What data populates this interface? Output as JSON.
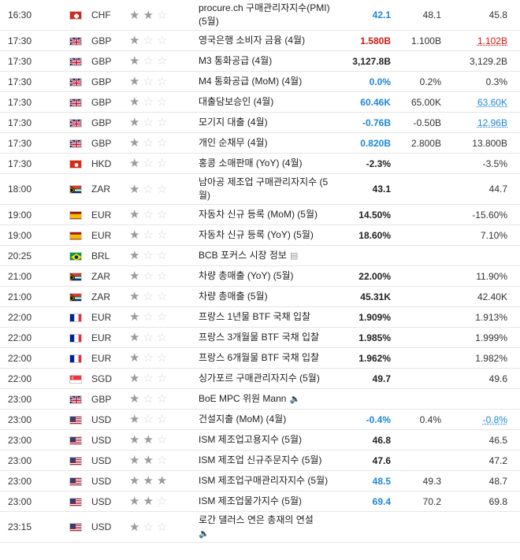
{
  "rows": [
    {
      "time": "16:30",
      "flag": "ch",
      "cur": "CHF",
      "stars": 2,
      "event": "procure.ch 구매관리자지수(PMI) (5월)",
      "actual": "42.1",
      "actual_class": "up",
      "forecast": "48.1",
      "prev": "45.8",
      "prev_class": "",
      "tall": true,
      "icon": ""
    },
    {
      "time": "17:30",
      "flag": "gb",
      "cur": "GBP",
      "stars": 1,
      "event": "영국은행 소비자 금융 (4월)",
      "actual": "1.580B",
      "actual_class": "down",
      "forecast": "1.100B",
      "prev": "1.102B",
      "prev_class": "down link",
      "tall": false,
      "icon": ""
    },
    {
      "time": "17:30",
      "flag": "gb",
      "cur": "GBP",
      "stars": 1,
      "event": "M3 통화공급 (4월)",
      "actual": "3,127.8B",
      "actual_class": "",
      "forecast": "",
      "prev": "3,129.2B",
      "prev_class": "",
      "tall": false,
      "icon": ""
    },
    {
      "time": "17:30",
      "flag": "gb",
      "cur": "GBP",
      "stars": 1,
      "event": "M4 통화공급 (MoM) (4월)",
      "actual": "0.0%",
      "actual_class": "up",
      "forecast": "0.2%",
      "prev": "0.3%",
      "prev_class": "",
      "tall": false,
      "icon": ""
    },
    {
      "time": "17:30",
      "flag": "gb",
      "cur": "GBP",
      "stars": 1,
      "event": "대출담보승인 (4월)",
      "actual": "60.46K",
      "actual_class": "up",
      "forecast": "65.00K",
      "prev": "63.60K",
      "prev_class": "up link",
      "tall": false,
      "icon": ""
    },
    {
      "time": "17:30",
      "flag": "gb",
      "cur": "GBP",
      "stars": 1,
      "event": "모기지 대출 (4월)",
      "actual": "-0.76B",
      "actual_class": "up",
      "forecast": "-0.50B",
      "prev": "12.96B",
      "prev_class": "up link",
      "tall": false,
      "icon": ""
    },
    {
      "time": "17:30",
      "flag": "gb",
      "cur": "GBP",
      "stars": 1,
      "event": "개인 순채무 (4월)",
      "actual": "0.820B",
      "actual_class": "up",
      "forecast": "2.800B",
      "prev": "13.800B",
      "prev_class": "",
      "tall": false,
      "icon": ""
    },
    {
      "time": "17:30",
      "flag": "hk",
      "cur": "HKD",
      "stars": 1,
      "event": "홍콩 소매판매 (YoY) (4월)",
      "actual": "-2.3%",
      "actual_class": "",
      "forecast": "",
      "prev": "-3.5%",
      "prev_class": "",
      "tall": false,
      "icon": ""
    },
    {
      "time": "18:00",
      "flag": "za",
      "cur": "ZAR",
      "stars": 1,
      "event": "남아공 제조업 구매관리자지수 (5월)",
      "actual": "43.1",
      "actual_class": "",
      "forecast": "",
      "prev": "44.7",
      "prev_class": "",
      "tall": true,
      "icon": ""
    },
    {
      "time": "19:00",
      "flag": "es",
      "cur": "EUR",
      "stars": 1,
      "event": "자동차 신규 등록 (MoM) (5월)",
      "actual": "14.50%",
      "actual_class": "",
      "forecast": "",
      "prev": "-15.60%",
      "prev_class": "",
      "tall": false,
      "icon": ""
    },
    {
      "time": "19:00",
      "flag": "es",
      "cur": "EUR",
      "stars": 1,
      "event": "자동차 신규 등록 (YoY) (5월)",
      "actual": "18.60%",
      "actual_class": "",
      "forecast": "",
      "prev": "7.10%",
      "prev_class": "",
      "tall": false,
      "icon": ""
    },
    {
      "time": "20:25",
      "flag": "br",
      "cur": "BRL",
      "stars": 1,
      "event": "BCB 포커스 시장 정보",
      "actual": "",
      "actual_class": "",
      "forecast": "",
      "prev": "",
      "prev_class": "",
      "tall": false,
      "icon": "report"
    },
    {
      "time": "21:00",
      "flag": "za",
      "cur": "ZAR",
      "stars": 1,
      "event": "차량 총매출 (YoY) (5월)",
      "actual": "22.00%",
      "actual_class": "",
      "forecast": "",
      "prev": "11.90%",
      "prev_class": "",
      "tall": false,
      "icon": ""
    },
    {
      "time": "21:00",
      "flag": "za",
      "cur": "ZAR",
      "stars": 1,
      "event": "차량 총매출 (5월)",
      "actual": "45.31K",
      "actual_class": "",
      "forecast": "",
      "prev": "42.40K",
      "prev_class": "",
      "tall": false,
      "icon": ""
    },
    {
      "time": "22:00",
      "flag": "fr",
      "cur": "EUR",
      "stars": 1,
      "event": "프랑스 1년물 BTF 국채 입찰",
      "actual": "1.909%",
      "actual_class": "",
      "forecast": "",
      "prev": "1.913%",
      "prev_class": "",
      "tall": false,
      "icon": ""
    },
    {
      "time": "22:00",
      "flag": "fr",
      "cur": "EUR",
      "stars": 1,
      "event": "프랑스 3개월물 BTF 국채 입찰",
      "actual": "1.985%",
      "actual_class": "",
      "forecast": "",
      "prev": "1.999%",
      "prev_class": "",
      "tall": false,
      "icon": ""
    },
    {
      "time": "22:00",
      "flag": "fr",
      "cur": "EUR",
      "stars": 1,
      "event": "프랑스 6개월물 BTF 국채 입찰",
      "actual": "1.962%",
      "actual_class": "",
      "forecast": "",
      "prev": "1.982%",
      "prev_class": "",
      "tall": false,
      "icon": ""
    },
    {
      "time": "22:00",
      "flag": "sg",
      "cur": "SGD",
      "stars": 1,
      "event": "싱가포르 구매관리자지수 (5월)",
      "actual": "49.7",
      "actual_class": "",
      "forecast": "",
      "prev": "49.6",
      "prev_class": "",
      "tall": false,
      "icon": ""
    },
    {
      "time": "23:00",
      "flag": "gb",
      "cur": "GBP",
      "stars": 1,
      "event": "BoE MPC 위원 Mann",
      "actual": "",
      "actual_class": "",
      "forecast": "",
      "prev": "",
      "prev_class": "",
      "tall": false,
      "icon": "speaker"
    },
    {
      "time": "23:00",
      "flag": "us",
      "cur": "USD",
      "stars": 1,
      "event": "건설지출 (MoM) (4월)",
      "actual": "-0.4%",
      "actual_class": "up",
      "forecast": "0.4%",
      "prev": "-0.8%",
      "prev_class": "up link",
      "tall": false,
      "icon": ""
    },
    {
      "time": "23:00",
      "flag": "us",
      "cur": "USD",
      "stars": 2,
      "event": "ISM 제조업고용지수 (5월)",
      "actual": "46.8",
      "actual_class": "",
      "forecast": "",
      "prev": "46.5",
      "prev_class": "",
      "tall": false,
      "icon": ""
    },
    {
      "time": "23:00",
      "flag": "us",
      "cur": "USD",
      "stars": 2,
      "event": "ISM 제조업 신규주문지수 (5월)",
      "actual": "47.6",
      "actual_class": "",
      "forecast": "",
      "prev": "47.2",
      "prev_class": "",
      "tall": false,
      "icon": ""
    },
    {
      "time": "23:00",
      "flag": "us",
      "cur": "USD",
      "stars": 3,
      "event": "ISM 제조업구매관리자지수 (5월)",
      "actual": "48.5",
      "actual_class": "up",
      "forecast": "49.3",
      "prev": "48.7",
      "prev_class": "",
      "tall": false,
      "icon": ""
    },
    {
      "time": "23:00",
      "flag": "us",
      "cur": "USD",
      "stars": 2,
      "event": "ISM 제조업물가지수 (5월)",
      "actual": "69.4",
      "actual_class": "up",
      "forecast": "70.2",
      "prev": "69.8",
      "prev_class": "",
      "tall": false,
      "icon": ""
    },
    {
      "time": "23:15",
      "flag": "us",
      "cur": "USD",
      "stars": 1,
      "event": "로간 댈러스 연은 총재의 연설",
      "actual": "",
      "actual_class": "",
      "forecast": "",
      "prev": "",
      "prev_class": "",
      "tall": true,
      "icon": "speaker"
    }
  ],
  "icons": {
    "star_filled": "★",
    "star_empty": "☆",
    "speaker": "🔈",
    "report": "▤"
  }
}
